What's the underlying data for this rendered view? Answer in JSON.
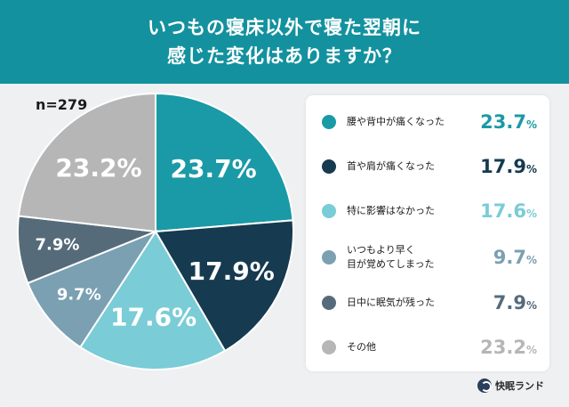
{
  "header": {
    "title_line1": "いつもの寝床以外で寝た翌朝に",
    "title_line2": "感じた変化はありますか？"
  },
  "sample_size": "n=279",
  "colors": {
    "header_bg": "#13919e",
    "text_on_light": "#ffffff"
  },
  "chart_data": {
    "type": "pie",
    "title": "いつもの寝床以外で寝た翌朝に感じた変化はありますか？",
    "unit": "%",
    "categories": [
      "腰や背中が痛くなった",
      "首や肩が痛くなった",
      "特に影響はなかった",
      "いつもより早く\n目が覚めてしまった",
      "日中に眠気が残った",
      "その他"
    ],
    "values": [
      23.7,
      17.9,
      17.6,
      9.7,
      7.9,
      23.2
    ],
    "colors": [
      "#1a9aa6",
      "#163a4f",
      "#7accd6",
      "#7aa0b2",
      "#566b7a",
      "#b6b6b6"
    ],
    "labels": [
      "23.7%",
      "17.9%",
      "17.6%",
      "9.7%",
      "7.9%",
      "23.2%"
    ],
    "start": "12 o'clock, clockwise"
  },
  "legend": {
    "items": [
      {
        "label": "腰や背中が痛くなった",
        "value": "23.7",
        "unit": "%",
        "color": "#1a9aa6"
      },
      {
        "label": "首や肩が痛くなった",
        "value": "17.9",
        "unit": "%",
        "color": "#163a4f"
      },
      {
        "label": "特に影響はなかった",
        "value": "17.6",
        "unit": "%",
        "color": "#7accd6"
      },
      {
        "label": "いつもより早く\n目が覚めてしまった",
        "value": "9.7",
        "unit": "%",
        "color": "#7aa0b2"
      },
      {
        "label": "日中に眠気が残った",
        "value": "7.9",
        "unit": "%",
        "color": "#566b7a"
      },
      {
        "label": "その他",
        "value": "23.2",
        "unit": "%",
        "color": "#b6b6b6"
      }
    ]
  },
  "brand": {
    "name": "快眠ランド",
    "icon": "moon-logo-icon"
  }
}
